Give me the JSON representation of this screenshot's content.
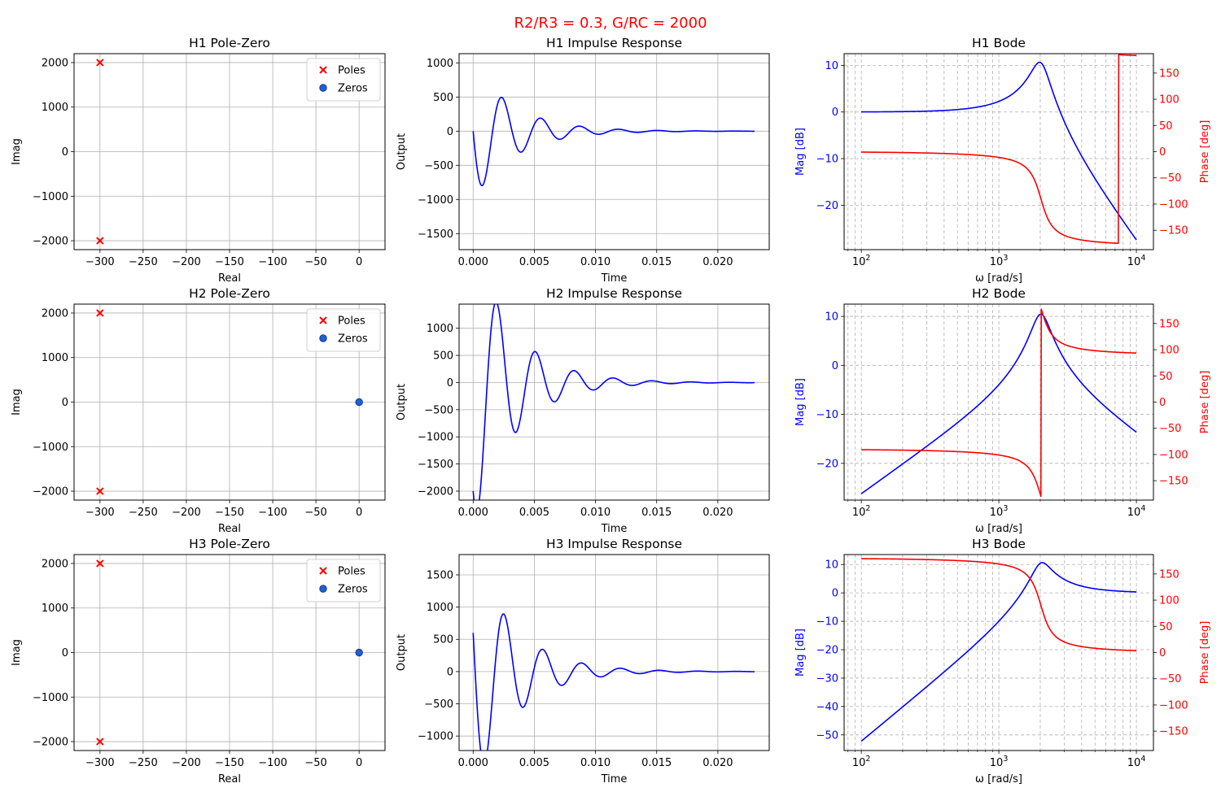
{
  "figure": {
    "suptitle": "R2/R3 = 0.3, G/RC = 2000",
    "suptitle_color": "#ff0000"
  },
  "colors": {
    "poles": "#ff0000",
    "zeros": "#1f5fd6",
    "impulse": "#0000ff",
    "magnitude": "#0000ff",
    "phase": "#ff0000",
    "grid": "#b0b0b0"
  },
  "chart_data": [
    {
      "id": "pz1",
      "type": "scatter",
      "title": "H1 Pole-Zero",
      "xlabel": "Real",
      "ylabel": "Imag",
      "xlim": [
        -330,
        30
      ],
      "ylim": [
        -2200,
        2200
      ],
      "xticks": [
        -300,
        -250,
        -200,
        -150,
        -100,
        -50,
        0
      ],
      "xtick_labels": [
        "−300",
        "−250",
        "−200",
        "−150",
        "−100",
        "−50",
        "0"
      ],
      "yticks": [
        -2000,
        -1000,
        0,
        1000,
        2000
      ],
      "ytick_labels": [
        "−2000",
        "−1000",
        "0",
        "1000",
        "2000"
      ],
      "grid": true,
      "legend": {
        "position": "upper right",
        "entries": [
          "Poles",
          "Zeros"
        ]
      },
      "series": [
        {
          "name": "Poles",
          "marker": "x",
          "points": [
            [
              -300,
              2000
            ],
            [
              -300,
              -2000
            ]
          ]
        },
        {
          "name": "Zeros",
          "marker": "o",
          "points": []
        }
      ]
    },
    {
      "id": "imp1",
      "type": "line",
      "title": "H1 Impulse Response",
      "xlabel": "Time",
      "ylabel": "Output",
      "xlim": [
        -0.00115,
        0.0242
      ],
      "ylim": [
        -1735,
        1135
      ],
      "xticks": [
        0,
        0.005,
        0.01,
        0.015,
        0.02
      ],
      "xtick_labels": [
        "0.000",
        "0.005",
        "0.010",
        "0.015",
        "0.020"
      ],
      "yticks": [
        -1500,
        -1000,
        -500,
        0,
        500,
        1000
      ],
      "ytick_labels": [
        "−1500",
        "−1000",
        "−500",
        "0",
        "500",
        "1000"
      ],
      "grid": true,
      "response": {
        "kind": "impulse",
        "A": 0,
        "B": 1000,
        "sigma": 300,
        "omega_d": 1977.4,
        "t_end": 0.023
      }
    },
    {
      "id": "bode1",
      "type": "line",
      "title": "H1 Bode",
      "xlabel": "ω [rad/s]",
      "ylabel": "Mag [dB]",
      "ylabel2": "Phase [deg]",
      "xscale": "log",
      "xlim": [
        75,
        13300
      ],
      "ylim": [
        -29.5,
        12.5
      ],
      "ylim2": [
        -187,
        187
      ],
      "xticks": [
        100,
        1000,
        10000
      ],
      "xtick_labels": [
        "10^2",
        "10^3",
        "10^4"
      ],
      "yticks": [
        -20,
        -10,
        0,
        10
      ],
      "ytick_labels": [
        "−20",
        "−10",
        "0",
        "10"
      ],
      "yticks2": [
        -150,
        -100,
        -50,
        0,
        50,
        100,
        150
      ],
      "ytick2_labels": [
        "−150",
        "−100",
        "−50",
        "0",
        "50",
        "100",
        "150"
      ],
      "grid": true,
      "response": {
        "kind": "bode",
        "numerator": [
          0,
          0,
          4090000
        ],
        "wrap": false,
        "w_range": [
          100,
          10000
        ]
      }
    },
    {
      "id": "pz2",
      "type": "scatter",
      "title": "H2 Pole-Zero",
      "xlabel": "Real",
      "ylabel": "Imag",
      "xlim": [
        -330,
        30
      ],
      "ylim": [
        -2200,
        2200
      ],
      "xticks": [
        -300,
        -250,
        -200,
        -150,
        -100,
        -50,
        0
      ],
      "xtick_labels": [
        "−300",
        "−250",
        "−200",
        "−150",
        "−100",
        "−50",
        "0"
      ],
      "yticks": [
        -2000,
        -1000,
        0,
        1000,
        2000
      ],
      "ytick_labels": [
        "−2000",
        "−1000",
        "0",
        "1000",
        "2000"
      ],
      "grid": true,
      "legend": {
        "position": "upper right",
        "entries": [
          "Poles",
          "Zeros"
        ]
      },
      "series": [
        {
          "name": "Poles",
          "marker": "x",
          "points": [
            [
              -300,
              2000
            ],
            [
              -300,
              -2000
            ]
          ]
        },
        {
          "name": "Zeros",
          "marker": "o",
          "points": [
            [
              0,
              0
            ]
          ]
        }
      ]
    },
    {
      "id": "imp2",
      "type": "line",
      "title": "H2 Impulse Response",
      "xlabel": "Time",
      "ylabel": "Output",
      "xlim": [
        -0.00115,
        0.0242
      ],
      "ylim": [
        -2165,
        1445
      ],
      "xticks": [
        0,
        0.005,
        0.01,
        0.015,
        0.02
      ],
      "xtick_labels": [
        "0.000",
        "0.005",
        "0.010",
        "0.015",
        "0.020"
      ],
      "yticks": [
        -2000,
        -1500,
        -1000,
        -500,
        0,
        500,
        1000
      ],
      "ytick_labels": [
        "−2000",
        "−1500",
        "−1000",
        "−500",
        "0",
        "500",
        "1000"
      ],
      "grid": true,
      "response": {
        "kind": "impulse",
        "A": -2000,
        "B": 1700,
        "sigma": 300,
        "omega_d": 1977.4,
        "t_end": 0.023
      }
    },
    {
      "id": "bode2",
      "type": "line",
      "title": "H2 Bode",
      "xlabel": "ω [rad/s]",
      "ylabel": "Mag [dB]",
      "ylabel2": "Phase [deg]",
      "xscale": "log",
      "xlim": [
        75,
        13300
      ],
      "ylim": [
        -27.5,
        12.5
      ],
      "ylim2": [
        -187,
        187
      ],
      "xticks": [
        100,
        1000,
        10000
      ],
      "xtick_labels": [
        "10^2",
        "10^3",
        "10^4"
      ],
      "yticks": [
        -20,
        -10,
        0,
        10
      ],
      "ytick_labels": [
        "−20",
        "−10",
        "0",
        "10"
      ],
      "yticks2": [
        -150,
        -100,
        -50,
        0,
        50,
        100,
        150
      ],
      "ytick2_labels": [
        "−150",
        "−100",
        "−50",
        "0",
        "50",
        "100",
        "150"
      ],
      "grid": true,
      "response": {
        "kind": "bode",
        "numerator": [
          0,
          -2000,
          0
        ],
        "wrap": true,
        "w_range": [
          100,
          10000
        ]
      }
    },
    {
      "id": "pz3",
      "type": "scatter",
      "title": "H3 Pole-Zero",
      "xlabel": "Real",
      "ylabel": "Imag",
      "xlim": [
        -330,
        30
      ],
      "ylim": [
        -2200,
        2200
      ],
      "xticks": [
        -300,
        -250,
        -200,
        -150,
        -100,
        -50,
        0
      ],
      "xtick_labels": [
        "−300",
        "−250",
        "−200",
        "−150",
        "−100",
        "−50",
        "0"
      ],
      "yticks": [
        -2000,
        -1000,
        0,
        1000,
        2000
      ],
      "ytick_labels": [
        "−2000",
        "−1000",
        "0",
        "1000",
        "2000"
      ],
      "grid": true,
      "legend": {
        "position": "upper right",
        "entries": [
          "Poles",
          "Zeros"
        ]
      },
      "series": [
        {
          "name": "Poles",
          "marker": "x",
          "points": [
            [
              -300,
              2000
            ],
            [
              -300,
              -2000
            ]
          ]
        },
        {
          "name": "Zeros",
          "marker": "o",
          "points": [
            [
              0,
              0
            ]
          ]
        }
      ]
    },
    {
      "id": "imp3",
      "type": "line",
      "title": "H3 Impulse Response",
      "xlabel": "Time",
      "ylabel": "Output",
      "xlim": [
        -0.00115,
        0.0242
      ],
      "ylim": [
        -1225,
        1815
      ],
      "xticks": [
        0,
        0.005,
        0.01,
        0.015,
        0.02
      ],
      "xtick_labels": [
        "0.000",
        "0.005",
        "0.010",
        "0.015",
        "0.020"
      ],
      "yticks": [
        -1000,
        -500,
        0,
        500,
        1000,
        1500
      ],
      "ytick_labels": [
        "−1000",
        "−500",
        "0",
        "500",
        "1000",
        "1500"
      ],
      "grid": true,
      "response": {
        "kind": "impulse",
        "A": 600,
        "B": 1800,
        "sigma": 300,
        "omega_d": 1977.4,
        "t_end": 0.023
      }
    },
    {
      "id": "bode3",
      "type": "line",
      "title": "H3 Bode",
      "xlabel": "ω [rad/s]",
      "ylabel": "Mag [dB]",
      "ylabel2": "Phase [deg]",
      "xscale": "log",
      "xlim": [
        75,
        13300
      ],
      "ylim": [
        -55.5,
        13.5
      ],
      "ylim2": [
        -187,
        187
      ],
      "xticks": [
        100,
        1000,
        10000
      ],
      "xtick_labels": [
        "10^2",
        "10^3",
        "10^4"
      ],
      "yticks": [
        -50,
        -40,
        -30,
        -20,
        -10,
        0,
        10
      ],
      "ytick_labels": [
        "−50",
        "−40",
        "−30",
        "−20",
        "−10",
        "0",
        "10"
      ],
      "yticks2": [
        -150,
        -100,
        -50,
        0,
        50,
        100,
        150
      ],
      "ytick2_labels": [
        "−150",
        "−100",
        "−50",
        "0",
        "50",
        "100",
        "150"
      ],
      "grid": true,
      "response": {
        "kind": "bode",
        "numerator": [
          1,
          0,
          0
        ],
        "wrap": false,
        "w_range": [
          100,
          10000
        ]
      }
    }
  ]
}
